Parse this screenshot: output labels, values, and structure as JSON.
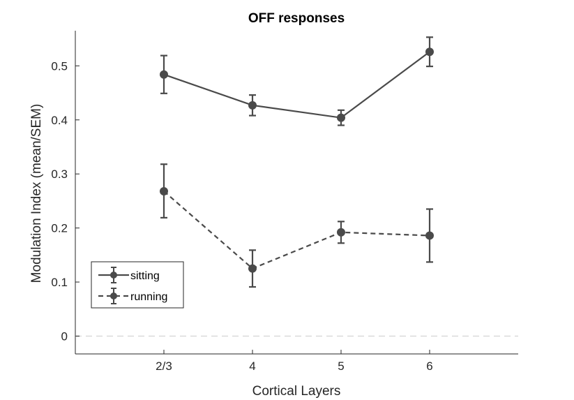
{
  "chart_data": {
    "type": "line",
    "title": "OFF responses",
    "xlabel": "Cortical Layers",
    "ylabel": "Modulation Index (mean/SEM)",
    "categories": [
      "2/3",
      "4",
      "5",
      "6"
    ],
    "x_range": [
      0,
      5
    ],
    "ylim": [
      -0.033,
      0.565
    ],
    "yticks": [
      0,
      0.1,
      0.2,
      0.3,
      0.4,
      0.5
    ],
    "ytick_labels": [
      "0",
      "0.1",
      "0.2",
      "0.3",
      "0.4",
      "0.5"
    ],
    "reference_line": 0,
    "grid": false,
    "legend_placement": "bottom-left",
    "series": [
      {
        "name": "sitting",
        "line_style": "solid",
        "color": "#4a4a4a",
        "values": [
          0.484,
          0.427,
          0.404,
          0.526
        ],
        "err_low": [
          0.449,
          0.408,
          0.39,
          0.499
        ],
        "err_high": [
          0.519,
          0.446,
          0.418,
          0.553
        ]
      },
      {
        "name": "running",
        "line_style": "dashed",
        "color": "#4a4a4a",
        "values": [
          0.268,
          0.125,
          0.192,
          0.186
        ],
        "err_low": [
          0.219,
          0.091,
          0.172,
          0.137
        ],
        "err_high": [
          0.318,
          0.159,
          0.212,
          0.235
        ]
      }
    ]
  }
}
